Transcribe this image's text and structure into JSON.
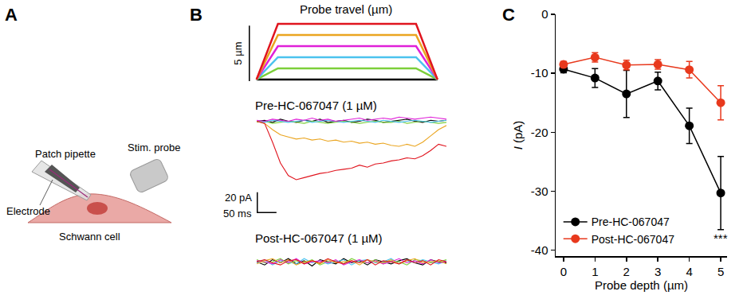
{
  "panel_labels": [
    "A",
    "B",
    "C"
  ],
  "diagram": {
    "pipette_label": "Patch pipette",
    "probe_label": "Stim. probe",
    "electrode_label": "Electrode",
    "cell_label": "Schwann cell"
  },
  "chart_data": [
    {
      "type": "line",
      "title": "Probe travel (µm)",
      "xlim": [
        -20,
        480
      ],
      "ylim": [
        -0.15,
        5.15
      ],
      "tick_labels": false,
      "scale_bars": [
        {
          "axis": "y",
          "value": 5,
          "label": "5 µm"
        }
      ],
      "series": [
        {
          "color": "#000000",
          "x": [
            0,
            55,
            410,
            465
          ],
          "values": [
            0,
            0,
            0,
            0
          ]
        },
        {
          "color": "#7ccf3a",
          "x": [
            0,
            55,
            410,
            465
          ],
          "values": [
            0,
            1,
            1,
            0
          ]
        },
        {
          "color": "#4cc3ee",
          "x": [
            0,
            55,
            410,
            465
          ],
          "values": [
            0,
            2,
            2,
            0
          ]
        },
        {
          "color": "#e020d8",
          "x": [
            0,
            55,
            410,
            465
          ],
          "values": [
            0,
            3,
            3,
            0
          ]
        },
        {
          "color": "#eaa520",
          "x": [
            0,
            55,
            410,
            465
          ],
          "values": [
            0,
            4,
            4,
            0
          ]
        },
        {
          "color": "#e0141e",
          "x": [
            0,
            55,
            410,
            465
          ],
          "values": [
            0,
            5,
            5,
            0
          ]
        }
      ]
    },
    {
      "type": "line",
      "title": "Pre-HC-067047 (1 µM)",
      "xlim": [
        0,
        480
      ],
      "ylim": [
        -88,
        8
      ],
      "tick_labels": false,
      "scale_bars": [
        {
          "axis": "y",
          "value": 20,
          "label": "20 pA"
        },
        {
          "axis": "x",
          "value": 50,
          "label": "50 ms"
        }
      ],
      "x": [
        0,
        20,
        40,
        60,
        80,
        100,
        120,
        140,
        160,
        180,
        200,
        220,
        240,
        260,
        280,
        300,
        320,
        340,
        360,
        380,
        400,
        420,
        440,
        460,
        480
      ],
      "series": [
        {
          "color": "#000000",
          "values": [
            0,
            1,
            -1,
            2,
            0,
            -1,
            1,
            0,
            2,
            -1,
            0,
            1,
            -1,
            0,
            2,
            1,
            -1,
            0,
            1,
            2,
            0,
            -1,
            1,
            0,
            1
          ]
        },
        {
          "color": "#7ccf3a",
          "values": [
            -1,
            0,
            -2,
            -1,
            0,
            -1,
            -2,
            0,
            -1,
            -2,
            -1,
            0,
            -1,
            -2,
            -1,
            0,
            -1,
            -1,
            0,
            -2,
            -1,
            0,
            -1,
            -2,
            -1
          ]
        },
        {
          "color": "#4cc3ee",
          "values": [
            0,
            -1,
            1,
            0,
            -1,
            0,
            1,
            -1,
            0,
            1,
            0,
            -1,
            0,
            1,
            0,
            -1,
            1,
            0,
            -1,
            0,
            1,
            0,
            -1,
            0,
            1
          ]
        },
        {
          "color": "#e020d8",
          "values": [
            1,
            0,
            2,
            1,
            0,
            2,
            1,
            3,
            1,
            2,
            0,
            1,
            2,
            3,
            1,
            2,
            3,
            2,
            4,
            3,
            2,
            3,
            4,
            3,
            2
          ]
        },
        {
          "color": "#eaa520",
          "values": [
            0,
            -2,
            -8,
            -13,
            -15,
            -17,
            -16,
            -18,
            -17,
            -19,
            -18,
            -20,
            -19,
            -21,
            -20,
            -22,
            -21,
            -23,
            -24,
            -22,
            -24,
            -20,
            -14,
            -8,
            -4
          ]
        },
        {
          "color": "#e0141e",
          "values": [
            0,
            -2,
            -20,
            -40,
            -52,
            -56,
            -54,
            -52,
            -50,
            -49,
            -47,
            -46,
            -45,
            -42,
            -44,
            -41,
            -40,
            -38,
            -37,
            -35,
            -36,
            -33,
            -28,
            -22,
            -24
          ]
        }
      ]
    },
    {
      "type": "line",
      "title": "Post-HC-067047 (1 µM)",
      "xlim": [
        0,
        480
      ],
      "ylim": [
        -12,
        10
      ],
      "tick_labels": false,
      "x": [
        0,
        20,
        40,
        60,
        80,
        100,
        120,
        140,
        160,
        180,
        200,
        220,
        240,
        260,
        280,
        300,
        320,
        340,
        360,
        380,
        400,
        420,
        440,
        460,
        480
      ],
      "series": [
        {
          "color": "#000000",
          "values": [
            0,
            -3,
            2,
            -1,
            3,
            -2,
            1,
            -4,
            2,
            0,
            -2,
            3,
            -1,
            1,
            -3,
            2,
            0,
            -2,
            1,
            3,
            -1,
            -3,
            2,
            0,
            -1
          ]
        },
        {
          "color": "#7ccf3a",
          "values": [
            2,
            -1,
            0,
            3,
            -2,
            1,
            -1,
            2,
            -3,
            0,
            1,
            -2,
            3,
            0,
            -1,
            2,
            -2,
            1,
            0,
            -3,
            2,
            1,
            -1,
            0,
            2
          ]
        },
        {
          "color": "#4cc3ee",
          "values": [
            -1,
            2,
            -3,
            1,
            0,
            -2,
            3,
            -1,
            1,
            -2,
            0,
            2,
            -3,
            1,
            2,
            -1,
            0,
            3,
            -2,
            1,
            -1,
            2,
            0,
            -2,
            1
          ]
        },
        {
          "color": "#e020d8",
          "values": [
            1,
            0,
            -2,
            2,
            -1,
            3,
            -2,
            0,
            1,
            -1,
            2,
            -3,
            0,
            2,
            -1,
            1,
            -2,
            0,
            3,
            -1,
            1,
            -2,
            2,
            -1,
            0
          ]
        },
        {
          "color": "#eaa520",
          "values": [
            -2,
            1,
            3,
            -1,
            2,
            -3,
            0,
            1,
            -2,
            2,
            -1,
            0,
            1,
            -3,
            2,
            0,
            -1,
            2,
            -2,
            1,
            3,
            -1,
            0,
            1,
            -2
          ]
        },
        {
          "color": "#e0141e",
          "values": [
            0,
            2,
            -1,
            -3,
            1,
            2,
            -2,
            1,
            -1,
            3,
            0,
            -2,
            1,
            -1,
            2,
            -3,
            1,
            0,
            -2,
            2,
            -1,
            1,
            -3,
            2,
            0
          ]
        }
      ]
    },
    {
      "type": "line",
      "x_label": "Probe depth (µm)",
      "y_label": "I (pA)",
      "x": [
        0,
        1,
        2,
        3,
        4,
        5
      ],
      "xlim": [
        -0.25,
        5.2
      ],
      "xticks": [
        0,
        1,
        2,
        3,
        4,
        5
      ],
      "ylim": [
        -41,
        0
      ],
      "yticks": [
        -40,
        -30,
        -20,
        -10,
        0
      ],
      "legend": "lower left",
      "marker": "circle",
      "series": [
        {
          "name": "Pre-HC-067047",
          "color": "#000000",
          "values": [
            -9.3,
            -10.8,
            -13.5,
            -11.3,
            -18.9,
            -30.3
          ],
          "error": [
            0.6,
            1.6,
            4.0,
            1.5,
            3.0,
            6.2
          ]
        },
        {
          "name": "Post-HC-067047",
          "color": "#e8391d",
          "values": [
            -8.5,
            -7.3,
            -8.6,
            -8.5,
            -9.4,
            -15.0
          ],
          "error": [
            0.5,
            0.8,
            0.8,
            0.8,
            1.4,
            2.9
          ]
        }
      ],
      "annotations": [
        {
          "x": 5,
          "y": -38,
          "text": "***"
        }
      ]
    }
  ]
}
